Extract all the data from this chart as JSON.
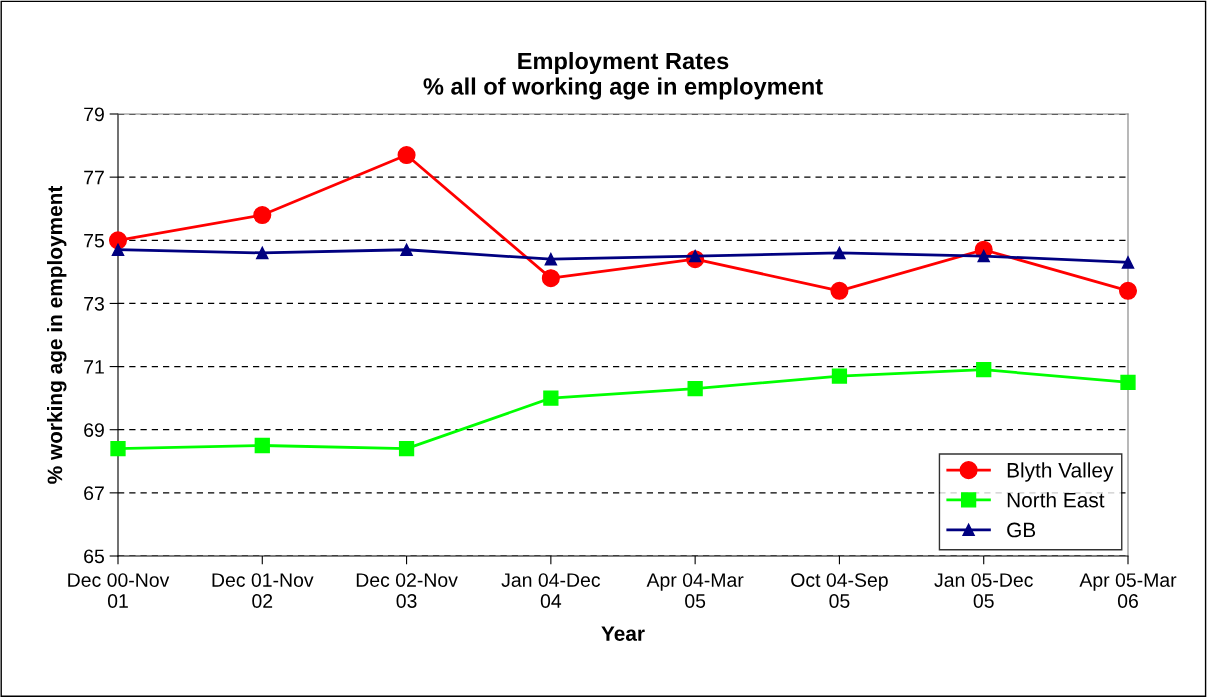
{
  "chart_data": {
    "type": "line",
    "title": "Employment Rates\n% all of working age in employment",
    "xlabel": "Year",
    "ylabel": "% working age in employment",
    "categories": [
      "Dec 00-Nov\n01",
      "Dec 01-Nov\n02",
      "Dec 02-Nov\n03",
      "Jan 04-Dec\n04",
      "Apr 04-Mar\n05",
      "Oct 04-Sep\n05",
      "Jan 05-Dec\n05",
      "Apr 05-Mar\n06"
    ],
    "series": [
      {
        "name": "Blyth Valley",
        "color": "#ff0000",
        "marker": "circle",
        "values": [
          75.0,
          75.8,
          77.7,
          73.8,
          74.4,
          73.4,
          74.7,
          73.4
        ]
      },
      {
        "name": "North East",
        "color": "#00ff00",
        "marker": "square",
        "values": [
          68.4,
          68.5,
          68.4,
          70.0,
          70.3,
          70.7,
          70.9,
          70.5
        ]
      },
      {
        "name": "GB",
        "color": "#000080",
        "marker": "triangle",
        "values": [
          74.7,
          74.6,
          74.7,
          74.4,
          74.5,
          74.6,
          74.5,
          74.3
        ]
      }
    ],
    "ylim": [
      65,
      79
    ],
    "yticks": [
      65,
      67,
      69,
      71,
      73,
      75,
      77,
      79
    ],
    "grid": "y",
    "legend": "bottom right",
    "line_style": "solid"
  }
}
